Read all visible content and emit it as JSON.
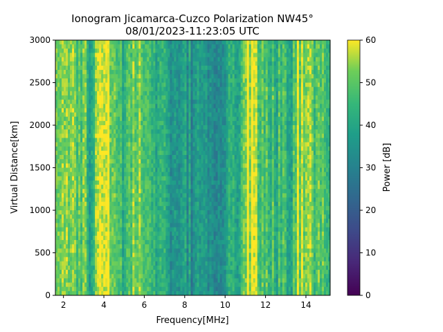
{
  "chart_data": {
    "type": "heatmap",
    "title": "Ionogram Jicamarca-Cuzco Polarization NW45°",
    "subtitle": "08/01/2023-11:23:05 UTC",
    "xlabel": "Frequency[MHz]",
    "ylabel": "Virtual Distance[km]",
    "xlim": [
      1.6,
      15.2
    ],
    "ylim": [
      0,
      3000
    ],
    "x_ticks": [
      2,
      4,
      6,
      8,
      10,
      12,
      14
    ],
    "y_ticks": [
      0,
      500,
      1000,
      1500,
      2000,
      2500,
      3000
    ],
    "colorbar": {
      "label": "Power [dB]",
      "range": [
        0,
        60
      ],
      "ticks": [
        0,
        10,
        20,
        30,
        40,
        50,
        60
      ],
      "colormap": "viridis"
    },
    "frequency_profile": {
      "x": [
        1.6,
        2.0,
        2.5,
        3.0,
        3.4,
        3.8,
        4.2,
        4.6,
        5.0,
        5.5,
        6.0,
        6.5,
        7.0,
        7.5,
        8.0,
        8.5,
        9.0,
        9.5,
        10.0,
        10.5,
        10.8,
        11.0,
        11.5,
        11.8,
        12.2,
        12.7,
        13.2,
        13.6,
        14.0,
        14.5,
        15.2
      ],
      "power_db": [
        50,
        52,
        54,
        48,
        40,
        56,
        56,
        44,
        46,
        50,
        54,
        46,
        40,
        38,
        38,
        34,
        34,
        36,
        38,
        42,
        44,
        58,
        58,
        50,
        46,
        44,
        42,
        54,
        56,
        48,
        46
      ]
    }
  }
}
